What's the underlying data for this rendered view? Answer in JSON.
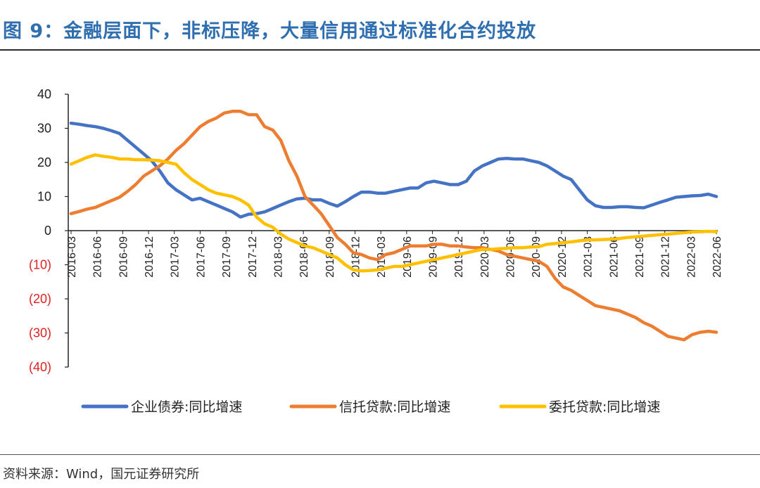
{
  "header": {
    "title": "图 9：金融层面下，非标压降，大量信用通过标准化合约投放"
  },
  "footer": {
    "source": "资料来源：Wind，国元证券研究所"
  },
  "chart_data": {
    "type": "line",
    "ylim": [
      -40,
      40
    ],
    "yticks": [
      40,
      30,
      20,
      10,
      0,
      -10,
      -20,
      -30,
      -40
    ],
    "ytick_labels": [
      "40",
      "30",
      "20",
      "10",
      "0",
      "(10)",
      "(20)",
      "(30)",
      "(40)"
    ],
    "xticks": [
      "2016-03",
      "2016-06",
      "2016-09",
      "2016-12",
      "2017-03",
      "2017-06",
      "2017-09",
      "2017-12",
      "2018-03",
      "2018-06",
      "2018-09",
      "2018-12",
      "2019-03",
      "2019-06",
      "2019-09",
      "2019-12",
      "2020-03",
      "2020-06",
      "2020-09",
      "2020-12",
      "2021-03",
      "2021-06",
      "2021-09",
      "2021-12",
      "2022-03",
      "2022-06"
    ],
    "grid": false,
    "legend_position": "bottom",
    "series": [
      {
        "name": "企业债券:同比增速",
        "color": "#4472c4",
        "values": [
          31.5,
          31.2,
          30.8,
          30.5,
          30,
          29.3,
          28.5,
          26.5,
          24.5,
          22.5,
          20.5,
          17.5,
          14,
          12,
          10.5,
          9,
          9.5,
          8.5,
          7.5,
          6.5,
          5.5,
          4,
          4.8,
          5,
          5.5,
          6.5,
          7.5,
          8.5,
          9.3,
          9.5,
          9,
          9,
          8,
          7.2,
          8.5,
          10,
          11.3,
          11.3,
          11,
          11,
          11.5,
          12,
          12.5,
          12.5,
          14,
          14.5,
          14,
          13.5,
          13.5,
          14.5,
          17.5,
          19,
          20,
          21,
          21.2,
          21,
          21,
          20.5,
          20,
          19,
          17.5,
          16,
          15,
          12,
          9,
          7.3,
          6.8,
          6.8,
          7,
          7,
          6.8,
          6.7,
          7.5,
          8.3,
          9,
          9.8,
          10,
          10.2,
          10.3,
          10.7,
          10
        ]
      },
      {
        "name": "信托贷款:同比增速",
        "color": "#ed7d31",
        "values": [
          5,
          5.6,
          6.3,
          6.8,
          7.8,
          8.8,
          9.8,
          11.5,
          13.5,
          16,
          17.5,
          19,
          21,
          23.5,
          25.5,
          28,
          30.5,
          32,
          33,
          34.5,
          35,
          35,
          34,
          34,
          30.5,
          29.5,
          26.5,
          20.5,
          16,
          10,
          7.5,
          5,
          1.5,
          -2,
          -4,
          -6.5,
          -7,
          -8,
          -8.5,
          -7,
          -6.5,
          -5.5,
          -4.5,
          -4.5,
          -4.5,
          -4,
          -4,
          -4.5,
          -4.5,
          -4.8,
          -5,
          -5,
          -5.5,
          -6,
          -7,
          -7.5,
          -8,
          -8.5,
          -9,
          -10.5,
          -14,
          -16.5,
          -17.5,
          -19,
          -20.5,
          -22,
          -22.5,
          -23,
          -23.5,
          -24.5,
          -25.5,
          -27,
          -28,
          -29.5,
          -31,
          -31.5,
          -32,
          -30.5,
          -29.8,
          -29.5,
          -29.8
        ]
      },
      {
        "name": "委托贷款:同比增速",
        "color": "#ffc000",
        "values": [
          19.5,
          20.5,
          21.5,
          22.2,
          21.8,
          21.5,
          21,
          21,
          20.8,
          20.8,
          20.7,
          20.5,
          20,
          19.5,
          17,
          15,
          13.5,
          12,
          11,
          10.5,
          10,
          9,
          7.5,
          4,
          2,
          1,
          -1,
          -2.5,
          -3.5,
          -4.5,
          -5,
          -6,
          -7,
          -8,
          -10,
          -11.5,
          -11.8,
          -11.7,
          -11.5,
          -11,
          -10.5,
          -10.5,
          -10,
          -9.5,
          -9,
          -8.5,
          -8,
          -7.5,
          -7,
          -6.5,
          -6,
          -5.5,
          -5.5,
          -5.3,
          -5.2,
          -5,
          -5,
          -4.8,
          -4.7,
          -4,
          -3.8,
          -3.5,
          -3.3,
          -3,
          -2.7,
          -2.7,
          -2.6,
          -2.5,
          -2.3,
          -2,
          -1.8,
          -1.6,
          -1.4,
          -1.2,
          -1,
          -0.8,
          -0.6,
          -0.4,
          -0.3,
          -0.2,
          -0.3
        ]
      }
    ]
  }
}
